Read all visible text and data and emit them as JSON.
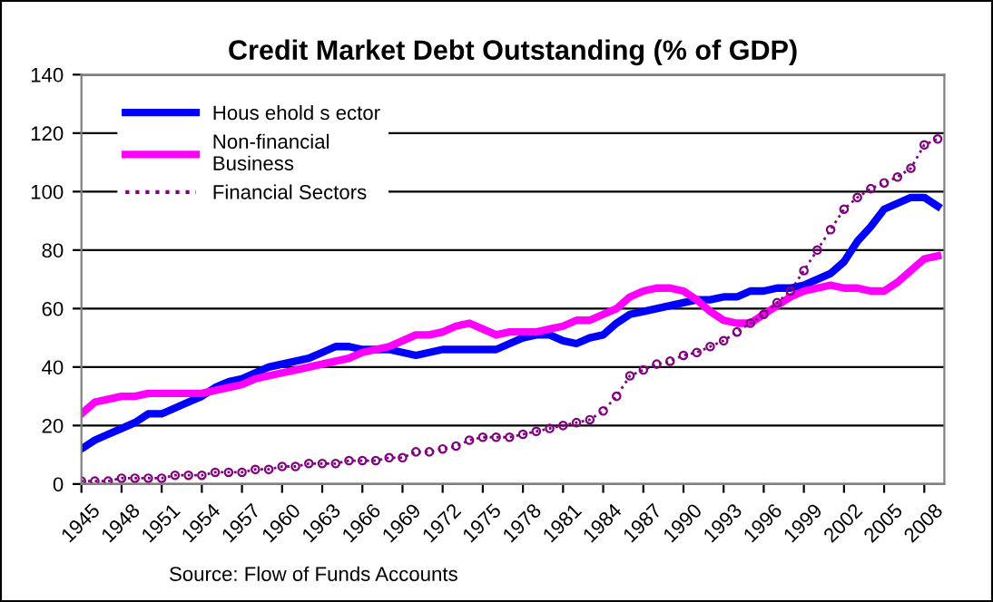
{
  "chart_data": {
    "type": "line",
    "title": "Credit Market Debt Outstanding (% of GDP)",
    "x": [
      1945,
      1946,
      1947,
      1948,
      1949,
      1950,
      1951,
      1952,
      1953,
      1954,
      1955,
      1956,
      1957,
      1958,
      1959,
      1960,
      1961,
      1962,
      1963,
      1964,
      1965,
      1966,
      1967,
      1968,
      1969,
      1970,
      1971,
      1972,
      1973,
      1974,
      1975,
      1976,
      1977,
      1978,
      1979,
      1980,
      1981,
      1982,
      1983,
      1984,
      1985,
      1986,
      1987,
      1988,
      1989,
      1990,
      1991,
      1992,
      1993,
      1994,
      1995,
      1996,
      1997,
      1998,
      1999,
      2000,
      2001,
      2002,
      2003,
      2004,
      2005,
      2006,
      2007,
      2008,
      2009
    ],
    "series": [
      {
        "name": "Hous ehold s ector",
        "color": "#0000ff",
        "marker": "none",
        "values": [
          12,
          15,
          17,
          19,
          21,
          24,
          24,
          26,
          28,
          30,
          33,
          35,
          36,
          38,
          40,
          41,
          42,
          43,
          45,
          47,
          47,
          46,
          46,
          46,
          45,
          44,
          45,
          46,
          46,
          46,
          46,
          46,
          48,
          50,
          51,
          51,
          49,
          48,
          50,
          51,
          55,
          58,
          59,
          60,
          61,
          62,
          63,
          63,
          64,
          64,
          66,
          66,
          67,
          67,
          68,
          70,
          72,
          76,
          83,
          88,
          94,
          96,
          98,
          98,
          95
        ]
      },
      {
        "name": "Non-financial\nBusiness",
        "color": "#ff00ff",
        "marker": "none",
        "values": [
          24,
          28,
          29,
          30,
          30,
          31,
          31,
          31,
          31,
          31,
          32,
          33,
          34,
          36,
          37,
          38,
          39,
          40,
          41,
          42,
          43,
          45,
          46,
          47,
          49,
          51,
          51,
          52,
          54,
          55,
          53,
          51,
          52,
          52,
          52,
          53,
          54,
          56,
          56,
          58,
          60,
          64,
          66,
          67,
          67,
          66,
          63,
          59,
          56,
          55,
          55,
          58,
          61,
          64,
          66,
          67,
          68,
          67,
          67,
          66,
          66,
          69,
          73,
          77,
          78
        ]
      },
      {
        "name": "Financial Sectors",
        "color": "#800080",
        "marker": "circle",
        "line_style": "dotted",
        "values": [
          1,
          1,
          1,
          2,
          2,
          2,
          2,
          3,
          3,
          3,
          4,
          4,
          4,
          5,
          5,
          6,
          6,
          7,
          7,
          7,
          8,
          8,
          8,
          9,
          9,
          11,
          11,
          12,
          13,
          15,
          16,
          16,
          16,
          17,
          18,
          19,
          20,
          21,
          22,
          25,
          30,
          37,
          39,
          41,
          42,
          44,
          45,
          47,
          49,
          52,
          55,
          58,
          62,
          66,
          73,
          80,
          87,
          94,
          98,
          101,
          103,
          105,
          108,
          116,
          118
        ]
      }
    ],
    "xlim": [
      1945,
      2009.5
    ],
    "xticks": [
      1945,
      1948,
      1951,
      1954,
      1957,
      1960,
      1963,
      1966,
      1969,
      1972,
      1975,
      1978,
      1981,
      1984,
      1987,
      1990,
      1993,
      1996,
      1999,
      2002,
      2005,
      2008
    ],
    "ylim": [
      0,
      140
    ],
    "yticks": [
      0,
      20,
      40,
      60,
      80,
      100,
      120,
      140
    ],
    "grid": "y",
    "legend": "top left",
    "annotations": [
      "Source: Flow of Funds Accounts"
    ]
  }
}
